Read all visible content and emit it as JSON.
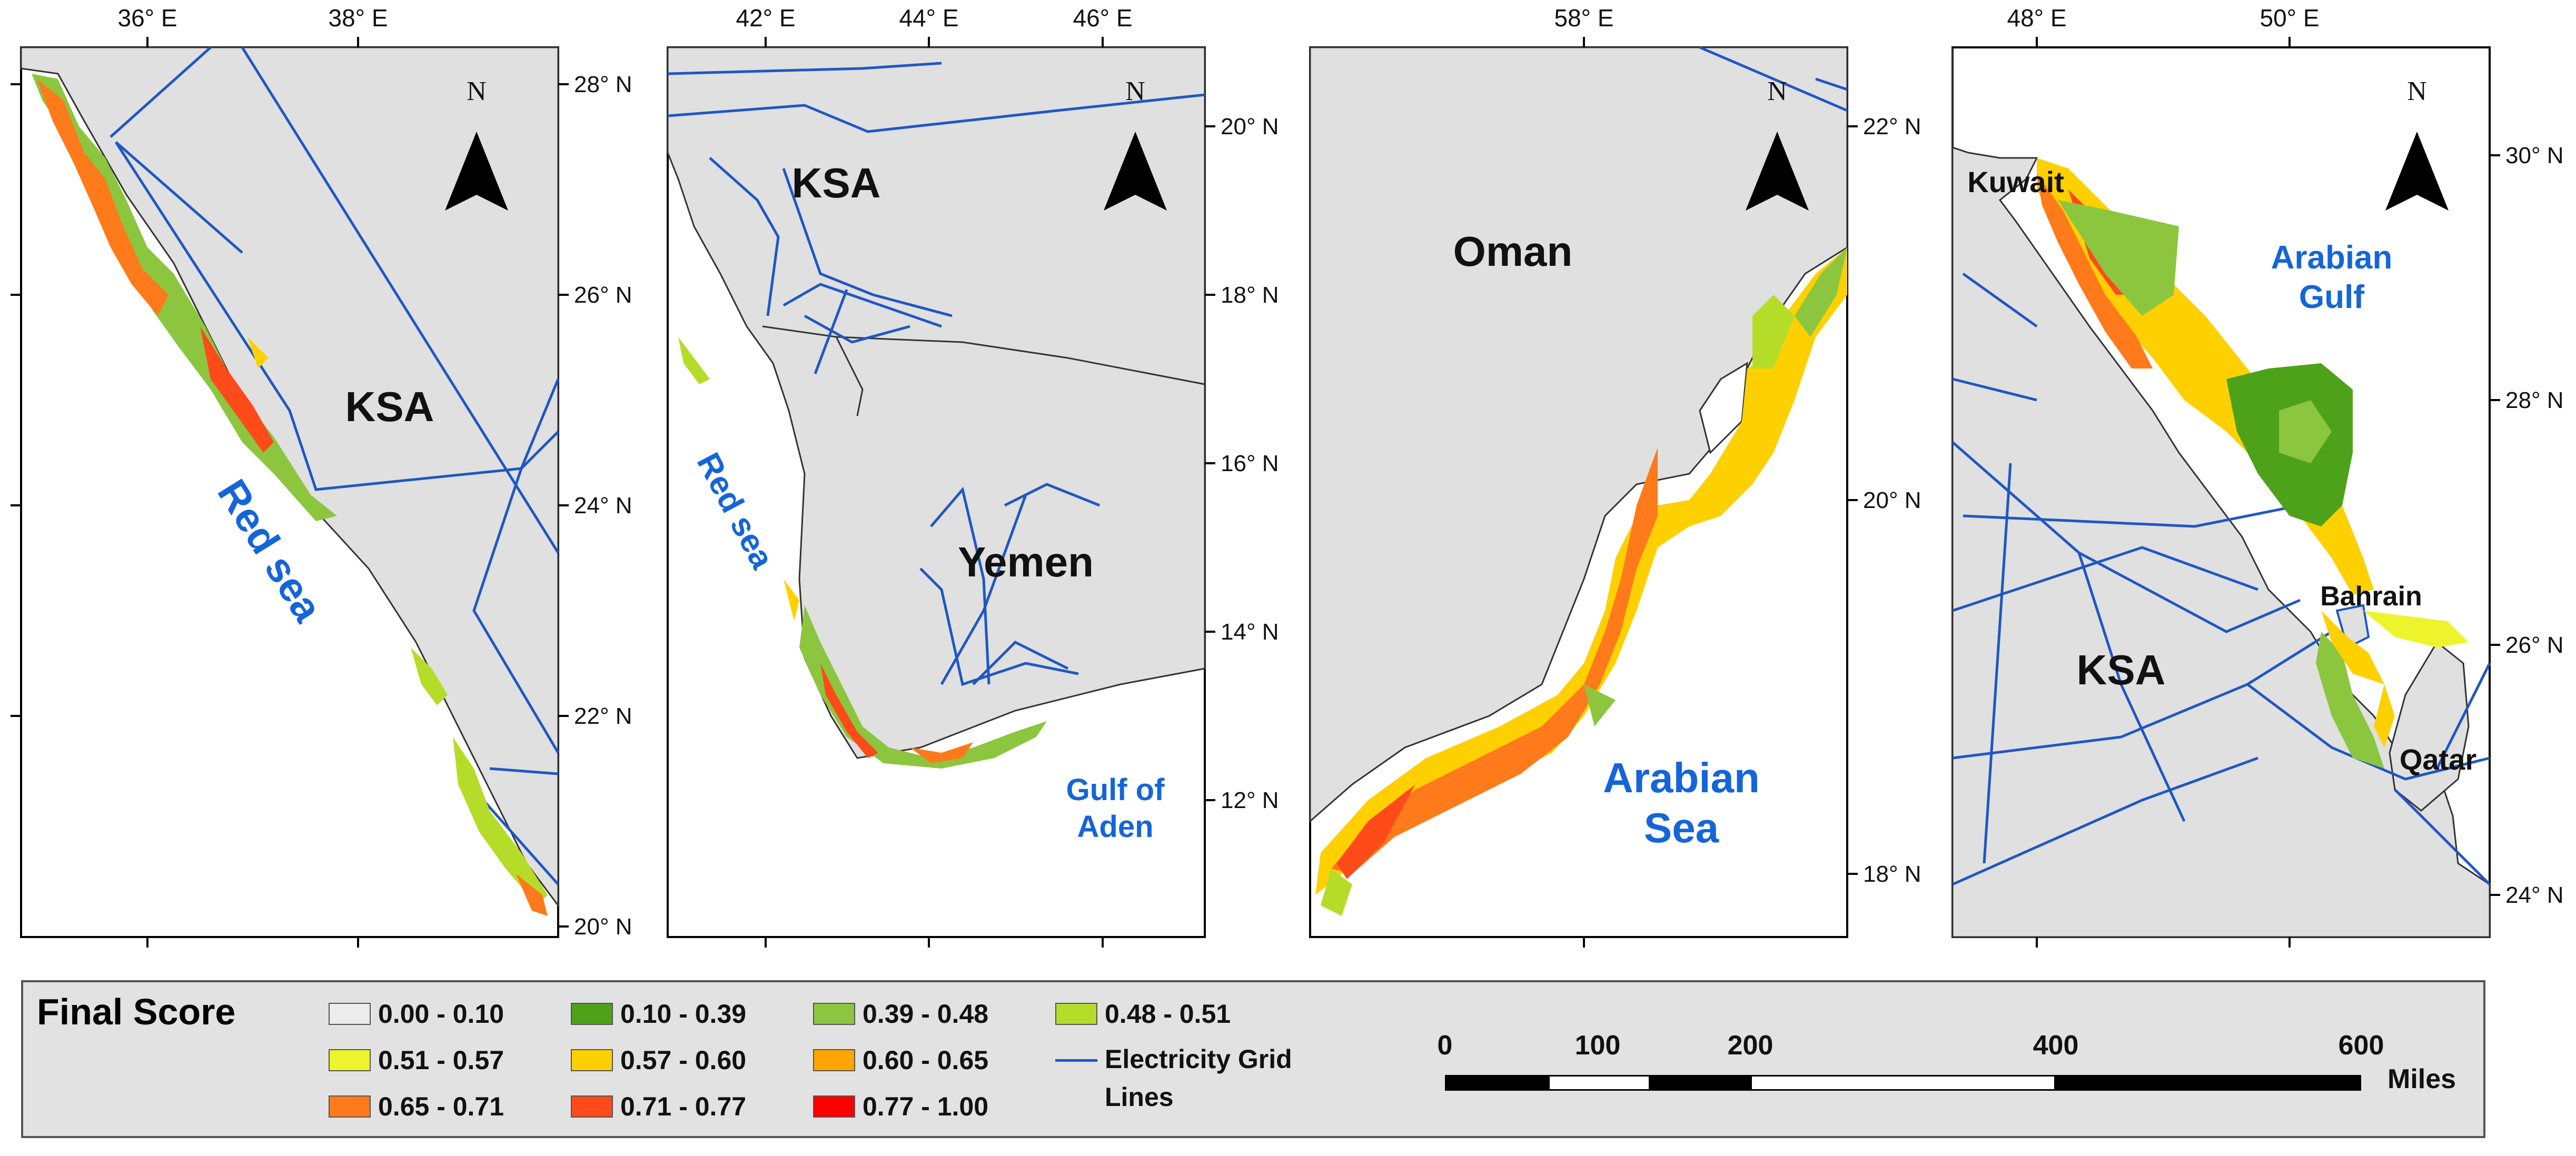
{
  "panels": [
    {
      "id": "red-sea-north",
      "x_ticks": [
        "36° E",
        "38° E"
      ],
      "y_ticks": [
        "28° N",
        "26° N",
        "24° N",
        "22° N",
        "20° N"
      ],
      "labels": {
        "country": "KSA",
        "sea": "Red sea"
      }
    },
    {
      "id": "red-sea-south",
      "x_ticks": [
        "42° E",
        "44° E",
        "46° E"
      ],
      "y_ticks": [
        "20° N",
        "18° N",
        "16° N",
        "14° N",
        "12° N"
      ],
      "labels": {
        "country1": "KSA",
        "country2": "Yemen",
        "sea": "Red sea",
        "gulf_line1": "Gulf of",
        "gulf_line2": "Aden"
      }
    },
    {
      "id": "oman",
      "x_ticks": [
        "58° E"
      ],
      "y_ticks": [
        "22° N",
        "20° N",
        "18° N"
      ],
      "labels": {
        "country": "Oman",
        "sea_line1": "Arabian",
        "sea_line2": "Sea"
      }
    },
    {
      "id": "arabian-gulf",
      "x_ticks": [
        "48° E",
        "50° E"
      ],
      "y_ticks": [
        "30° N",
        "28° N",
        "26° N",
        "24° N"
      ],
      "labels": {
        "kuwait": "Kuwait",
        "gulf_line1": "Arabian",
        "gulf_line2": "Gulf",
        "bahrain": "Bahrain",
        "ksa": "KSA",
        "qatar": "Qatar"
      }
    }
  ],
  "north_arrow_label": "N",
  "legend": {
    "title": "Final Score",
    "classes": [
      {
        "range": "0.00 - 0.10",
        "color": "#ececec"
      },
      {
        "range": "0.10 - 0.39",
        "color": "#4ea21a"
      },
      {
        "range": "0.39 - 0.48",
        "color": "#8cc63f"
      },
      {
        "range": "0.48 - 0.51",
        "color": "#b6dc2a"
      },
      {
        "range": "0.51 - 0.57",
        "color": "#eef42b"
      },
      {
        "range": "0.57 - 0.60",
        "color": "#ffd000"
      },
      {
        "range": "0.60 - 0.65",
        "color": "#ffa500"
      },
      {
        "range": "0.65 - 0.71",
        "color": "#ff7a1a"
      },
      {
        "range": "0.71 - 0.77",
        "color": "#ff4a1a"
      },
      {
        "range": "0.77 - 1.00",
        "color": "#ff0000"
      }
    ],
    "grid_line_label_1": "Electricity Grid",
    "grid_line_label_2": "Lines",
    "grid_line_color": "#1f57c3"
  },
  "scale_bar": {
    "ticks": [
      "0",
      "100",
      "200",
      "400",
      "600"
    ],
    "unit": "Miles"
  },
  "colors": {
    "land": "#e0e0e0",
    "sea": "#ffffff",
    "water_label": "#1565d8",
    "grid": "#1f57c3"
  }
}
